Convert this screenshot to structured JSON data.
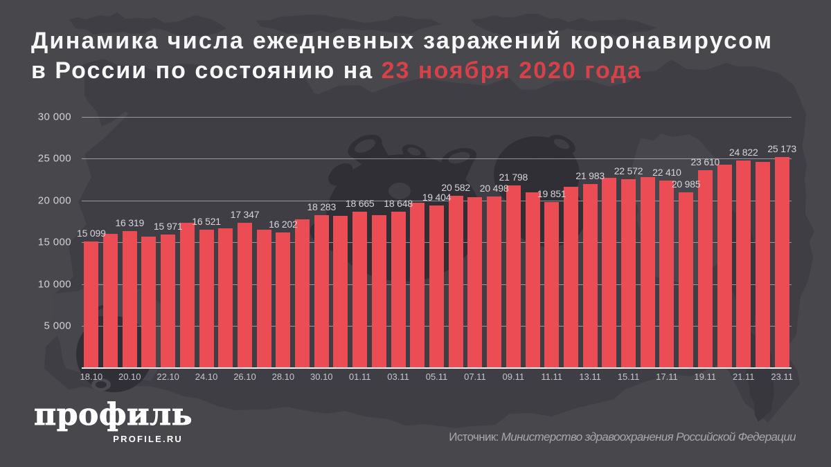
{
  "title": {
    "line1": "Динамика числа ежедневных заражений коронавирусом",
    "line2_prefix": "в России по состоянию на ",
    "line2_highlight": "23 ноября 2020 года"
  },
  "chart_data": {
    "type": "bar",
    "x": [
      "18.10",
      "19.10",
      "20.10",
      "21.10",
      "22.10",
      "23.10",
      "24.10",
      "25.10",
      "26.10",
      "27.10",
      "28.10",
      "29.10",
      "30.10",
      "31.10",
      "01.11",
      "02.11",
      "03.11",
      "04.11",
      "05.11",
      "06.11",
      "07.11",
      "08.11",
      "09.11",
      "10.11",
      "11.11",
      "12.11",
      "13.11",
      "14.11",
      "15.11",
      "16.11",
      "17.11",
      "18.11",
      "19.11",
      "20.11",
      "21.11",
      "22.11",
      "23.11"
    ],
    "values": [
      15099,
      15982,
      16319,
      15700,
      15971,
      17340,
      16521,
      16710,
      17347,
      16550,
      16202,
      17717,
      18283,
      18140,
      18665,
      18257,
      18648,
      19768,
      19404,
      20582,
      20396,
      20498,
      21798,
      20977,
      19851,
      21608,
      21983,
      22702,
      22572,
      22778,
      22410,
      20985,
      23610,
      24318,
      24822,
      24581,
      25173
    ],
    "label_indices": [
      0,
      2,
      4,
      6,
      8,
      10,
      12,
      14,
      16,
      18,
      19,
      21,
      22,
      24,
      26,
      28,
      30,
      31,
      32,
      34,
      36
    ],
    "x_tick_every": 2,
    "ylim": [
      0,
      30000
    ],
    "y_tick_step": 5000,
    "y_tick_labels": [
      "5 000",
      "10 000",
      "15 000",
      "20 000",
      "25 000",
      "30 000"
    ],
    "grid": true,
    "bar_color": "#ec4d54"
  },
  "footer": {
    "logo_text": "профиль",
    "logo_subtext": "PROFILE.RU",
    "source_prefix": "Источник: ",
    "source_name": "Министерство здравоохранения Российской Федерации"
  },
  "colors": {
    "background": "#47474c",
    "map_silhouette": "#3e3e44",
    "virus_silhouette": "#313137",
    "bar": "#ec4d54",
    "title_text": "#f7f7f8",
    "title_highlight": "#d8414a",
    "axis_text": "#c6c6ca",
    "value_text": "#d6d6da",
    "source_text": "#a7a7ac"
  }
}
